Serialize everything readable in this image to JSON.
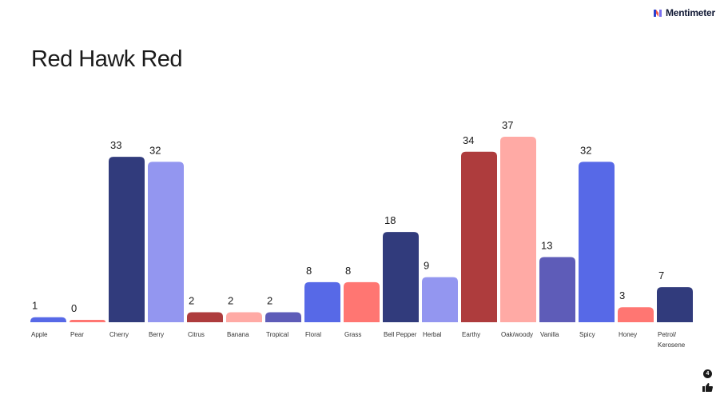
{
  "brand": {
    "name": "Mentimeter"
  },
  "slide": {
    "title": "Red Hawk Red"
  },
  "reactions": {
    "count": "4",
    "icon": "thumbs-up-icon"
  },
  "chart_data": {
    "type": "bar",
    "title": "Red Hawk Red",
    "xlabel": "",
    "ylabel": "",
    "ylim": [
      0,
      37
    ],
    "grid": false,
    "legend": "none",
    "categories": [
      "Apple",
      "Pear",
      "Cherry",
      "Berry",
      "Citrus",
      "Banana",
      "Tropical",
      "Floral",
      "Grass",
      "Bell Pepper",
      "Herbal",
      "Earthy",
      "Oak/woody",
      "Vanilla",
      "Spicy",
      "Honey",
      "Petrol/ Kerosene"
    ],
    "label_lines": [
      [
        "Apple"
      ],
      [
        "Pear"
      ],
      [
        "Cherry"
      ],
      [
        "Berry"
      ],
      [
        "Citrus"
      ],
      [
        "Banana"
      ],
      [
        "Tropical"
      ],
      [
        "Floral"
      ],
      [
        "Grass"
      ],
      [
        "Bell Pepper"
      ],
      [
        "Herbal"
      ],
      [
        "Earthy"
      ],
      [
        "Oak/woody"
      ],
      [
        "Vanilla"
      ],
      [
        "Spicy"
      ],
      [
        "Honey"
      ],
      [
        "Petrol/",
        "Kerosene"
      ]
    ],
    "values": [
      1,
      0,
      33,
      32,
      2,
      2,
      2,
      8,
      8,
      18,
      9,
      34,
      37,
      13,
      32,
      3,
      7
    ],
    "colors": [
      "#5769e7",
      "#ff7672",
      "#313b7c",
      "#9396f0",
      "#ae3c3d",
      "#ffaaa5",
      "#5e5cb8",
      "#5769e7",
      "#ff7672",
      "#313b7c",
      "#9396f0",
      "#ae3c3d",
      "#ffaaa5",
      "#5e5cb8",
      "#5769e7",
      "#ff7672",
      "#313b7c"
    ]
  }
}
